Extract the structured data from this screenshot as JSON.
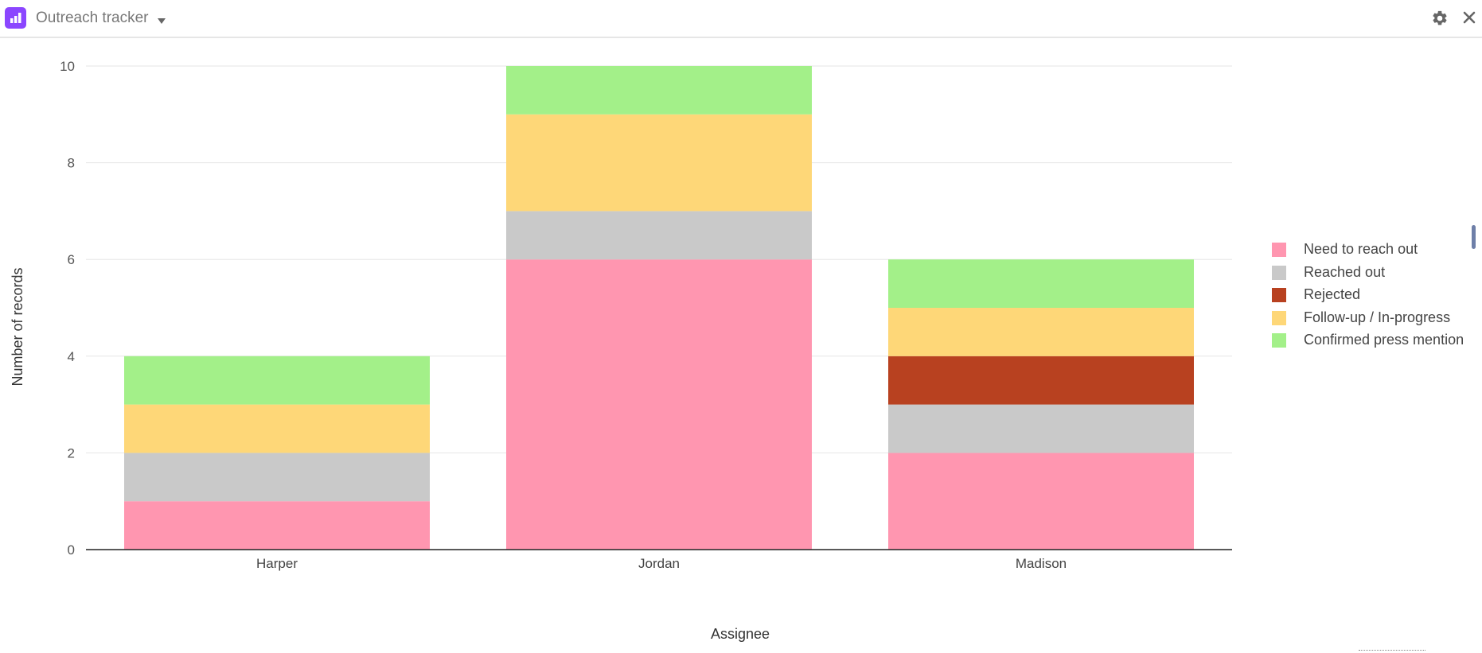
{
  "header": {
    "title": "Outreach tracker",
    "app_icon": "bar-chart-icon",
    "settings_icon": "gear-icon",
    "close_icon": "close-icon"
  },
  "chart_data": {
    "type": "bar",
    "stacked": true,
    "categories": [
      "Harper",
      "Jordan",
      "Madison"
    ],
    "series": [
      {
        "name": "Need to reach out",
        "color": "#ff96b0",
        "values": [
          1,
          6,
          2
        ]
      },
      {
        "name": "Reached out",
        "color": "#c9c9c9",
        "values": [
          1,
          1,
          1
        ]
      },
      {
        "name": "Rejected",
        "color": "#b84120",
        "values": [
          0,
          0,
          1
        ]
      },
      {
        "name": "Follow-up / In-progress",
        "color": "#fed778",
        "values": [
          1,
          2,
          1
        ]
      },
      {
        "name": "Confirmed press mention",
        "color": "#a3f089",
        "values": [
          1,
          1,
          1
        ]
      }
    ],
    "xlabel": "Assignee",
    "ylabel": "Number of records",
    "ylim": [
      0,
      10
    ],
    "yticks": [
      0,
      2,
      4,
      6,
      8,
      10
    ],
    "grid": true,
    "legend_position": "right"
  }
}
